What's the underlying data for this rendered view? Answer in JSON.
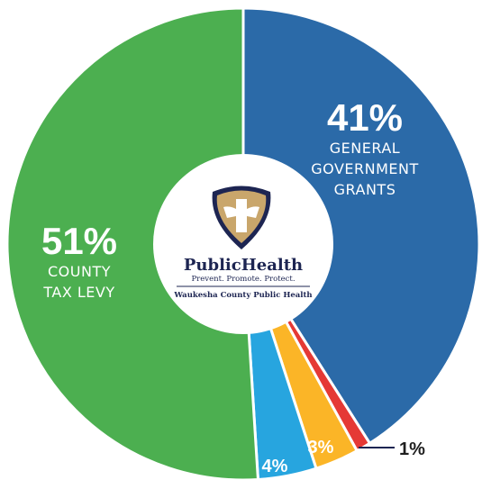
{
  "chart_data": {
    "type": "pie",
    "style": "donut",
    "slices": [
      {
        "value": 41,
        "label": "41%",
        "category": [
          "GENERAL",
          "GOVERNMENT",
          "GRANTS"
        ],
        "color": "#2b6aa8"
      },
      {
        "value": 1,
        "label": "1%",
        "category": [],
        "color": "#e53935"
      },
      {
        "value": 3,
        "label": "3%",
        "category": [],
        "color": "#fbb527"
      },
      {
        "value": 4,
        "label": "4%",
        "category": [],
        "color": "#27a5df"
      },
      {
        "value": 51,
        "label": "51%",
        "category": [
          "COUNTY",
          "TAX LEVY"
        ],
        "color": "#4caf50"
      }
    ]
  },
  "logo": {
    "wordmark": "PublicHealth",
    "tagline": "Prevent. Promote. Protect.",
    "organization": "Waukesha County Public Health",
    "colors": {
      "shield_outer": "#1d2552",
      "shield_inner": "#c9a66b",
      "cross": "#ffffff"
    }
  }
}
